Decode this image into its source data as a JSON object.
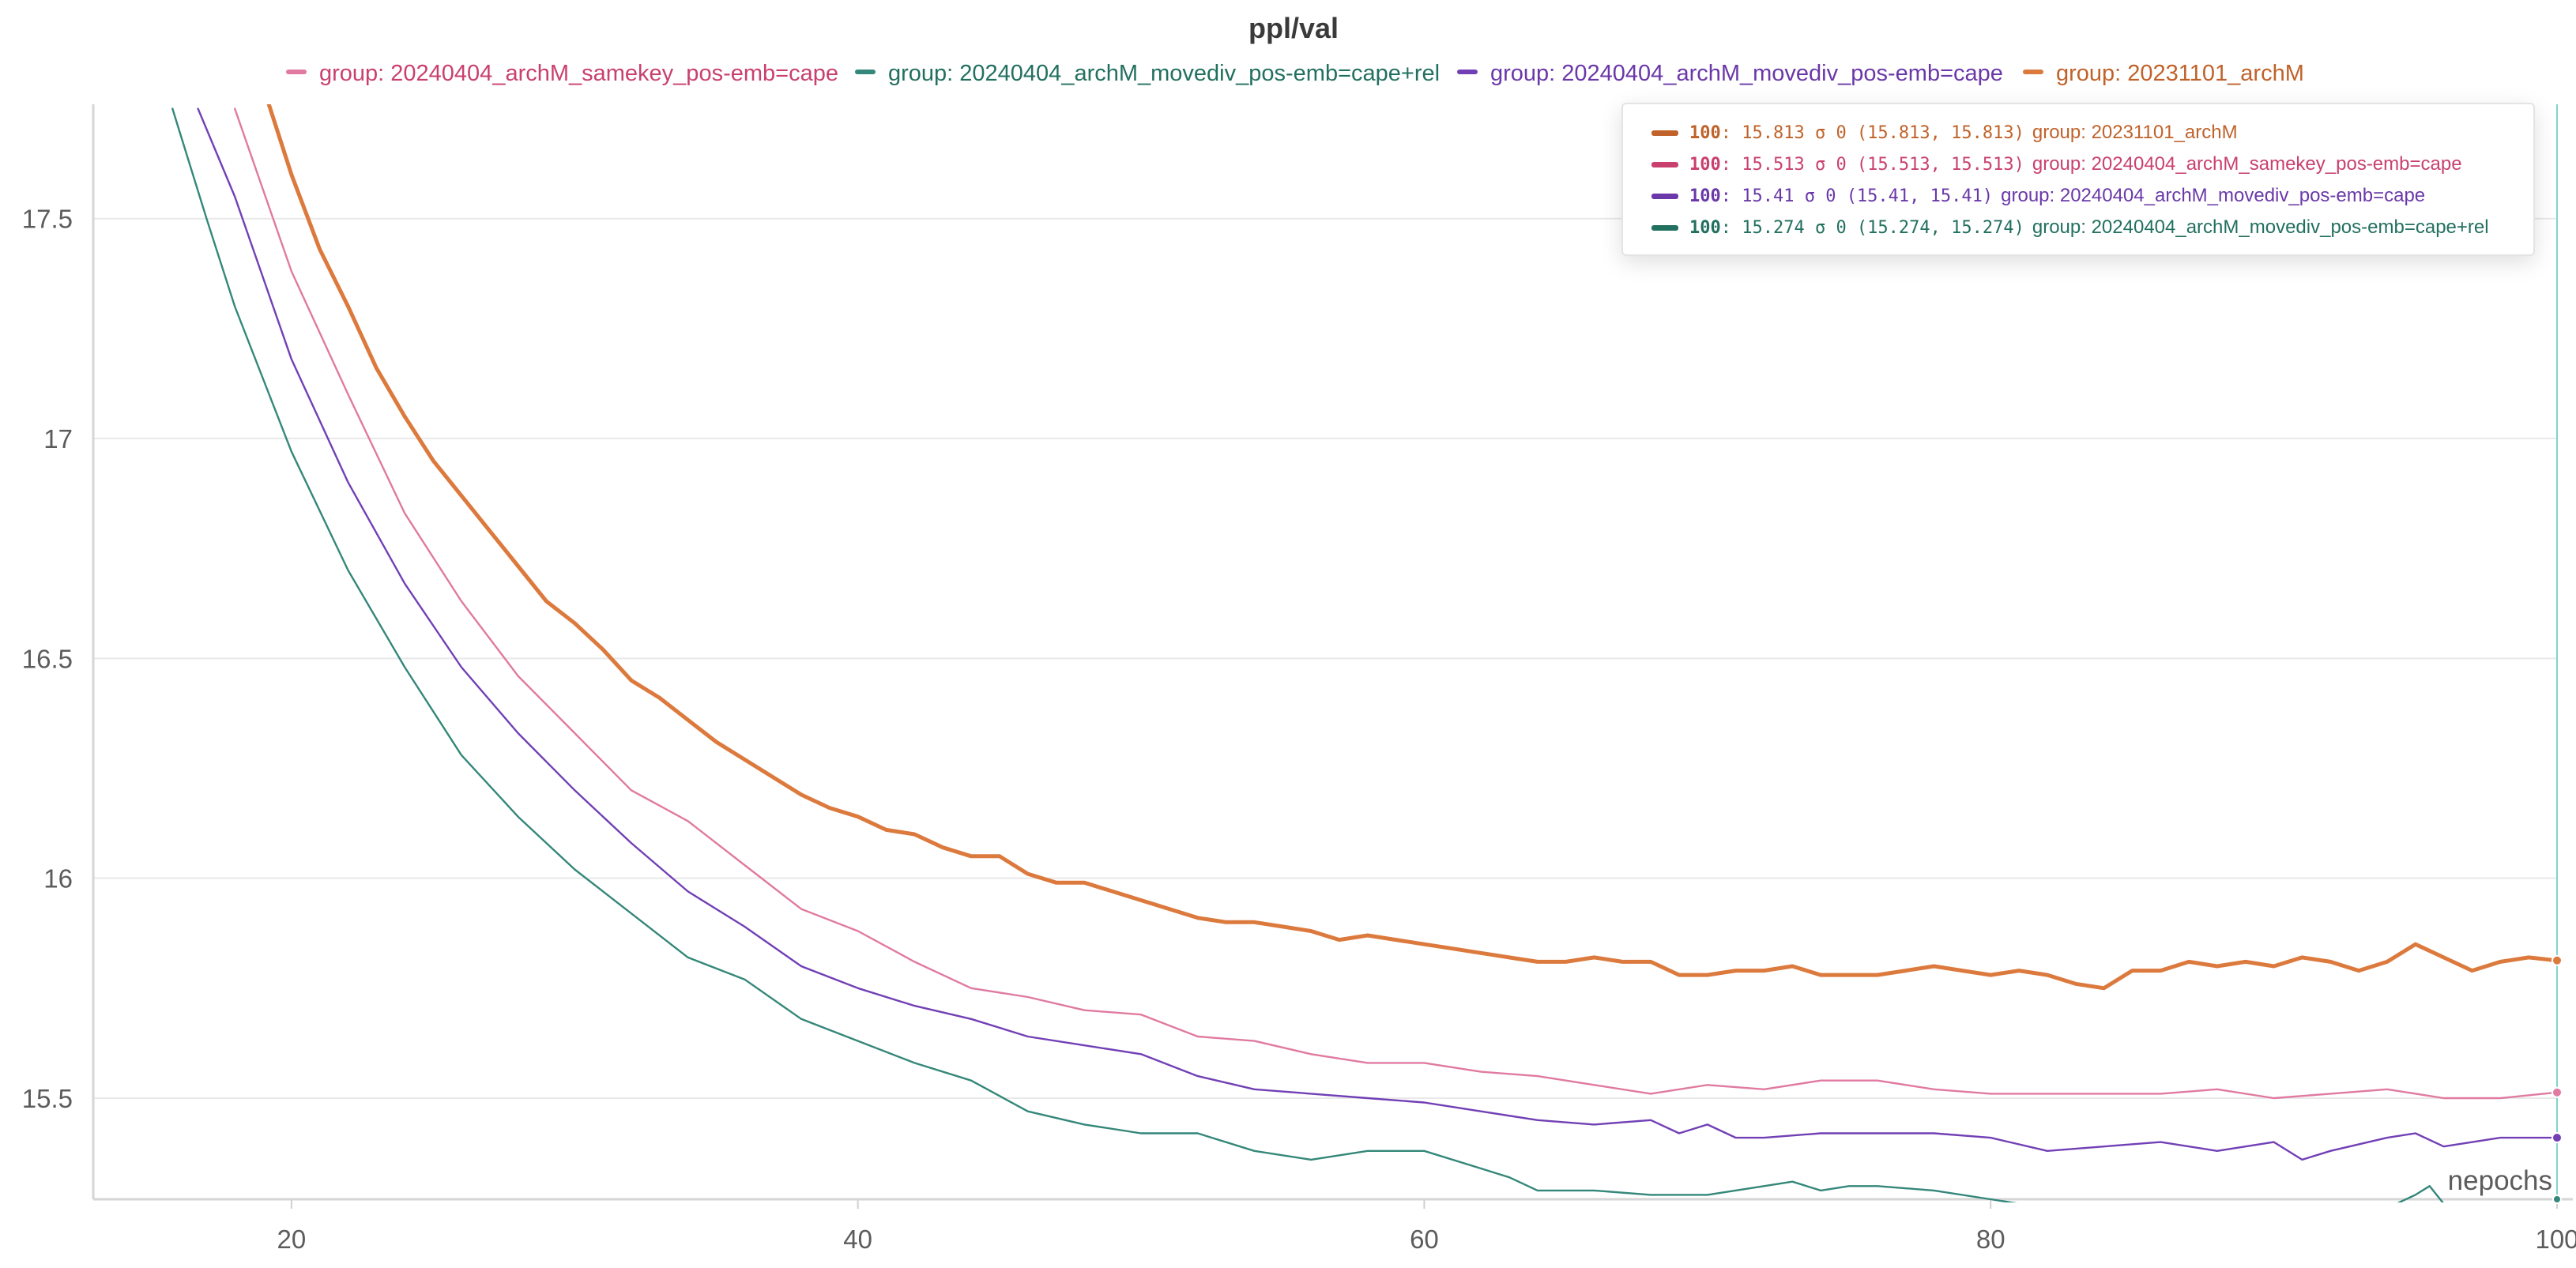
{
  "chart_data": {
    "type": "line",
    "title": "ppl/val",
    "xlabel": "nepochs",
    "ylabel": "",
    "xlim": [
      13,
      100
    ],
    "ylim": [
      15.27,
      17.76
    ],
    "x_ticks": [
      "20",
      "40",
      "60",
      "80",
      "100"
    ],
    "y_ticks": [
      "15.5",
      "16",
      "16.5",
      "17",
      "17.5"
    ],
    "grid": true,
    "legend_position": "top-center",
    "legend": [
      {
        "label": "group: 20240404_archM_samekey_pos-emb=cape",
        "color": "#e07aa0"
      },
      {
        "label": "group: 20240404_archM_movediv_pos-emb=cape+rel",
        "color": "#34877a"
      },
      {
        "label": "group: 20240404_archM_movediv_pos-emb=cape",
        "color": "#7140b5"
      },
      {
        "label": "group: 20231101_archM",
        "color": "#dc7a3e"
      }
    ],
    "series": [
      {
        "name": "group: 20240404_archM_samekey_pos-emb=cape",
        "color": "#e07aa0",
        "text_color": "#c9406f",
        "width": 2.4,
        "x": [
          18,
          20,
          22,
          24,
          26,
          28,
          30,
          32,
          34,
          36,
          38,
          40,
          42,
          44,
          46,
          48,
          50,
          52,
          54,
          56,
          58,
          60,
          62,
          64,
          66,
          68,
          70,
          72,
          74,
          76,
          78,
          80,
          82,
          84,
          86,
          88,
          90,
          92,
          94,
          96,
          98,
          100
        ],
        "y": [
          17.75,
          17.38,
          17.1,
          16.83,
          16.63,
          16.46,
          16.33,
          16.2,
          16.13,
          16.03,
          15.93,
          15.88,
          15.81,
          15.75,
          15.73,
          15.7,
          15.69,
          15.64,
          15.63,
          15.6,
          15.58,
          15.58,
          15.56,
          15.55,
          15.53,
          15.51,
          15.53,
          15.52,
          15.54,
          15.54,
          15.52,
          15.51,
          15.51,
          15.51,
          15.51,
          15.52,
          15.5,
          15.51,
          15.52,
          15.5,
          15.5,
          15.513
        ]
      },
      {
        "name": "group: 20240404_archM_movediv_pos-emb=cape+rel",
        "color": "#34877a",
        "text_color": "#22705f",
        "width": 2.4,
        "x": [
          15.8,
          17,
          18,
          20,
          22,
          24,
          26,
          28,
          30,
          32,
          34,
          36,
          38,
          40,
          42,
          44,
          46,
          48,
          50,
          52,
          54,
          56,
          58,
          60,
          62,
          63,
          64,
          66,
          68,
          70,
          72,
          73,
          74,
          75,
          76,
          78,
          80,
          81,
          82,
          86,
          88,
          90,
          92,
          94,
          95,
          95.5,
          96,
          97.5
        ],
        "y": [
          17.75,
          17.5,
          17.3,
          16.97,
          16.7,
          16.48,
          16.28,
          16.14,
          16.02,
          15.92,
          15.82,
          15.77,
          15.68,
          15.63,
          15.58,
          15.54,
          15.47,
          15.44,
          15.42,
          15.42,
          15.38,
          15.36,
          15.38,
          15.38,
          15.34,
          15.32,
          15.29,
          15.29,
          15.28,
          15.28,
          15.3,
          15.31,
          15.29,
          15.3,
          15.3,
          15.29,
          15.27,
          15.26,
          15.24,
          15.24,
          15.26,
          15.25,
          15.24,
          15.25,
          15.28,
          15.3,
          15.26,
          15.24
        ]
      },
      {
        "name": "group: 20240404_archM_movediv_pos-emb=cape",
        "color": "#7140b5",
        "text_color": "#6a38a8",
        "width": 2.4,
        "x": [
          16.7,
          18,
          20,
          22,
          24,
          26,
          28,
          30,
          32,
          34,
          36,
          38,
          40,
          42,
          44,
          46,
          48,
          50,
          52,
          54,
          56,
          58,
          60,
          62,
          64,
          66,
          68,
          69,
          70,
          71,
          72,
          74,
          76,
          78,
          80,
          82,
          84,
          86,
          88,
          90,
          91,
          92,
          94,
          95,
          96,
          98,
          100
        ],
        "y": [
          17.75,
          17.55,
          17.18,
          16.9,
          16.67,
          16.48,
          16.33,
          16.2,
          16.08,
          15.97,
          15.89,
          15.8,
          15.75,
          15.71,
          15.68,
          15.64,
          15.62,
          15.6,
          15.55,
          15.52,
          15.51,
          15.5,
          15.49,
          15.47,
          15.45,
          15.44,
          15.45,
          15.42,
          15.44,
          15.41,
          15.41,
          15.42,
          15.42,
          15.42,
          15.41,
          15.38,
          15.39,
          15.4,
          15.38,
          15.4,
          15.36,
          15.38,
          15.41,
          15.42,
          15.39,
          15.41,
          15.41
        ]
      },
      {
        "name": "group: 20231101_archM",
        "color": "#dc7a3e",
        "text_color": "#c0622a",
        "width": 5,
        "x": [
          19.2,
          20,
          21,
          22,
          23,
          24,
          25,
          26,
          27,
          28,
          29,
          30,
          31,
          32,
          33,
          34,
          35,
          36,
          37,
          38,
          39,
          40,
          41,
          42,
          43,
          44,
          45,
          46,
          47,
          48,
          49,
          50,
          51,
          52,
          53,
          54,
          55,
          56,
          57,
          58,
          59,
          60,
          61,
          62,
          63,
          64,
          65,
          66,
          67,
          68,
          69,
          70,
          71,
          72,
          73,
          74,
          75,
          76,
          77,
          78,
          79,
          80,
          81,
          82,
          83,
          84,
          85,
          86,
          87,
          88,
          89,
          90,
          91,
          92,
          93,
          94,
          95,
          96,
          97,
          98,
          99,
          100
        ],
        "y": [
          17.76,
          17.6,
          17.43,
          17.3,
          17.16,
          17.05,
          16.95,
          16.87,
          16.79,
          16.71,
          16.63,
          16.58,
          16.52,
          16.45,
          16.41,
          16.36,
          16.31,
          16.27,
          16.23,
          16.19,
          16.16,
          16.14,
          16.11,
          16.1,
          16.07,
          16.05,
          16.05,
          16.01,
          15.99,
          15.99,
          15.97,
          15.95,
          15.93,
          15.91,
          15.9,
          15.9,
          15.89,
          15.88,
          15.86,
          15.87,
          15.86,
          15.85,
          15.84,
          15.83,
          15.82,
          15.81,
          15.81,
          15.82,
          15.81,
          15.81,
          15.78,
          15.78,
          15.79,
          15.79,
          15.8,
          15.78,
          15.78,
          15.78,
          15.79,
          15.8,
          15.79,
          15.78,
          15.79,
          15.78,
          15.76,
          15.75,
          15.79,
          15.79,
          15.81,
          15.8,
          15.81,
          15.8,
          15.82,
          15.81,
          15.79,
          15.81,
          15.85,
          15.82,
          15.79,
          15.81,
          15.82,
          15.813
        ]
      }
    ],
    "tooltip": {
      "rows": [
        {
          "step": "100",
          "stat": ": 15.813 σ 0 (15.813, 15.813)",
          "group": "group: 20231101_archM",
          "color": "#c0622a",
          "swatch": "#c0622a"
        },
        {
          "step": "100",
          "stat": ": 15.513 σ 0 (15.513, 15.513)",
          "group": "group: 20240404_archM_samekey_pos-emb=cape",
          "color": "#c9406f",
          "swatch": "#c9406f"
        },
        {
          "step": "100",
          "stat": ": 15.41 σ 0 (15.41, 15.41)",
          "group": "group: 20240404_archM_movediv_pos-emb=cape",
          "color": "#6a38a8",
          "swatch": "#6a38a8"
        },
        {
          "step": "100",
          "stat": ": 15.274 σ 0 (15.274, 15.274)",
          "group": "group: 20240404_archM_movediv_pos-emb=cape+rel",
          "color": "#22705f",
          "swatch": "#22705f"
        }
      ]
    },
    "cursor_x": 100,
    "cursor_color": "#7fd3cf"
  }
}
